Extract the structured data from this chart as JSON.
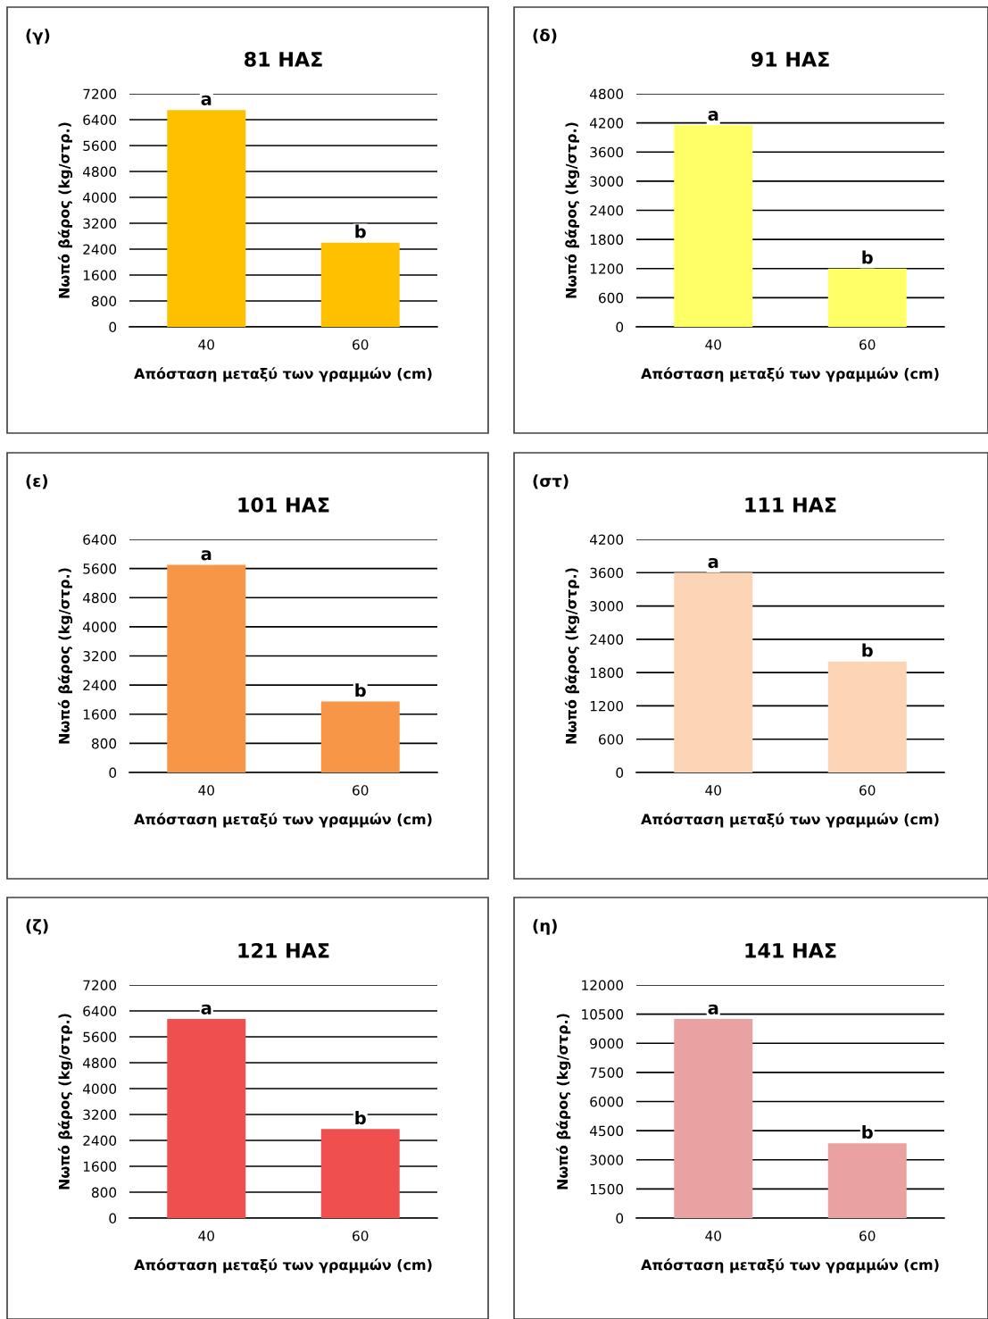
{
  "chart_data": [
    {
      "type": "bar",
      "title": "81 ΗΑΣ",
      "xlabel": "Απόσταση μεταξύ των γραμμών (cm)",
      "ylabel": "Νωπό βάρος (kg/στρ.)",
      "categories": [
        "40",
        "60"
      ],
      "values": [
        6700,
        2600
      ],
      "color": "#ffc000",
      "ylim": [
        0,
        7200
      ],
      "yticks": [
        0,
        800,
        1600,
        2400,
        3200,
        4000,
        4800,
        5600,
        6400,
        7200
      ],
      "grid": "y",
      "annotations": [
        "(γ)",
        {
          "text": "a",
          "x": "40",
          "y": 6700
        },
        {
          "text": "b",
          "x": "60",
          "y": 2600
        }
      ]
    },
    {
      "type": "bar",
      "title": "91 ΗΑΣ",
      "xlabel": "Απόσταση μεταξύ των γραμμών (cm)",
      "ylabel": "Νωπό βάρος (kg/στρ.)",
      "categories": [
        "40",
        "60"
      ],
      "values": [
        4150,
        1200
      ],
      "color": "#ffff66",
      "ylim": [
        0,
        4800
      ],
      "yticks": [
        0,
        600,
        1200,
        1800,
        2400,
        3000,
        3600,
        4200,
        4800
      ],
      "grid": "y",
      "annotations": [
        "(δ)",
        {
          "text": "a",
          "x": "40",
          "y": 4150
        },
        {
          "text": "b",
          "x": "60",
          "y": 1200
        }
      ]
    },
    {
      "type": "bar",
      "title": "101 ΗΑΣ",
      "xlabel": "Απόσταση μεταξύ των γραμμών (cm)",
      "ylabel": "Νωπό βάρος (kg/στρ.)",
      "categories": [
        "40",
        "60"
      ],
      "values": [
        5700,
        1950
      ],
      "color": "#f79646",
      "ylim": [
        0,
        6400
      ],
      "yticks": [
        0,
        800,
        1600,
        2400,
        3200,
        4000,
        4800,
        5600,
        6400
      ],
      "grid": "y",
      "annotations": [
        "(ε)",
        {
          "text": "a",
          "x": "40",
          "y": 5700
        },
        {
          "text": "b",
          "x": "60",
          "y": 1950
        }
      ]
    },
    {
      "type": "bar",
      "title": "111 ΗΑΣ",
      "xlabel": "Απόσταση μεταξύ των γραμμών (cm)",
      "ylabel": "Νωπό βάρος (kg/στρ.)",
      "categories": [
        "40",
        "60"
      ],
      "values": [
        3600,
        2000
      ],
      "color": "#fbd5b5",
      "ylim": [
        0,
        4200
      ],
      "yticks": [
        0,
        600,
        1200,
        1800,
        2400,
        3000,
        3600,
        4200
      ],
      "grid": "y",
      "annotations": [
        "(στ)",
        {
          "text": "a",
          "x": "40",
          "y": 3600
        },
        {
          "text": "b",
          "x": "60",
          "y": 2000
        }
      ]
    },
    {
      "type": "bar",
      "title": "121 ΗΑΣ",
      "xlabel": "Απόσταση μεταξύ των γραμμών (cm)",
      "ylabel": "Νωπό βάρος (kg/στρ.)",
      "categories": [
        "40",
        "60"
      ],
      "values": [
        6150,
        2750
      ],
      "color": "#f04f4f",
      "ylim": [
        0,
        7200
      ],
      "yticks": [
        0,
        800,
        1600,
        2400,
        3200,
        4000,
        4800,
        5600,
        6400,
        7200
      ],
      "grid": "y",
      "annotations": [
        "(ζ)",
        {
          "text": "a",
          "x": "40",
          "y": 6150
        },
        {
          "text": "b",
          "x": "60",
          "y": 2750
        }
      ]
    },
    {
      "type": "bar",
      "title": "141 ΗΑΣ",
      "xlabel": "Απόσταση μεταξύ των γραμμών (cm)",
      "ylabel": "Νωπό βάρος (kg/στρ.)",
      "categories": [
        "40",
        "60"
      ],
      "values": [
        10250,
        3850
      ],
      "color": "#e9a1a1",
      "ylim": [
        0,
        12000
      ],
      "yticks": [
        0,
        1500,
        3000,
        4500,
        6000,
        7500,
        9000,
        10500,
        12000
      ],
      "grid": "y",
      "annotations": [
        "(η)",
        {
          "text": "a",
          "x": "40",
          "y": 10250
        },
        {
          "text": "b",
          "x": "60",
          "y": 3850
        }
      ]
    }
  ]
}
